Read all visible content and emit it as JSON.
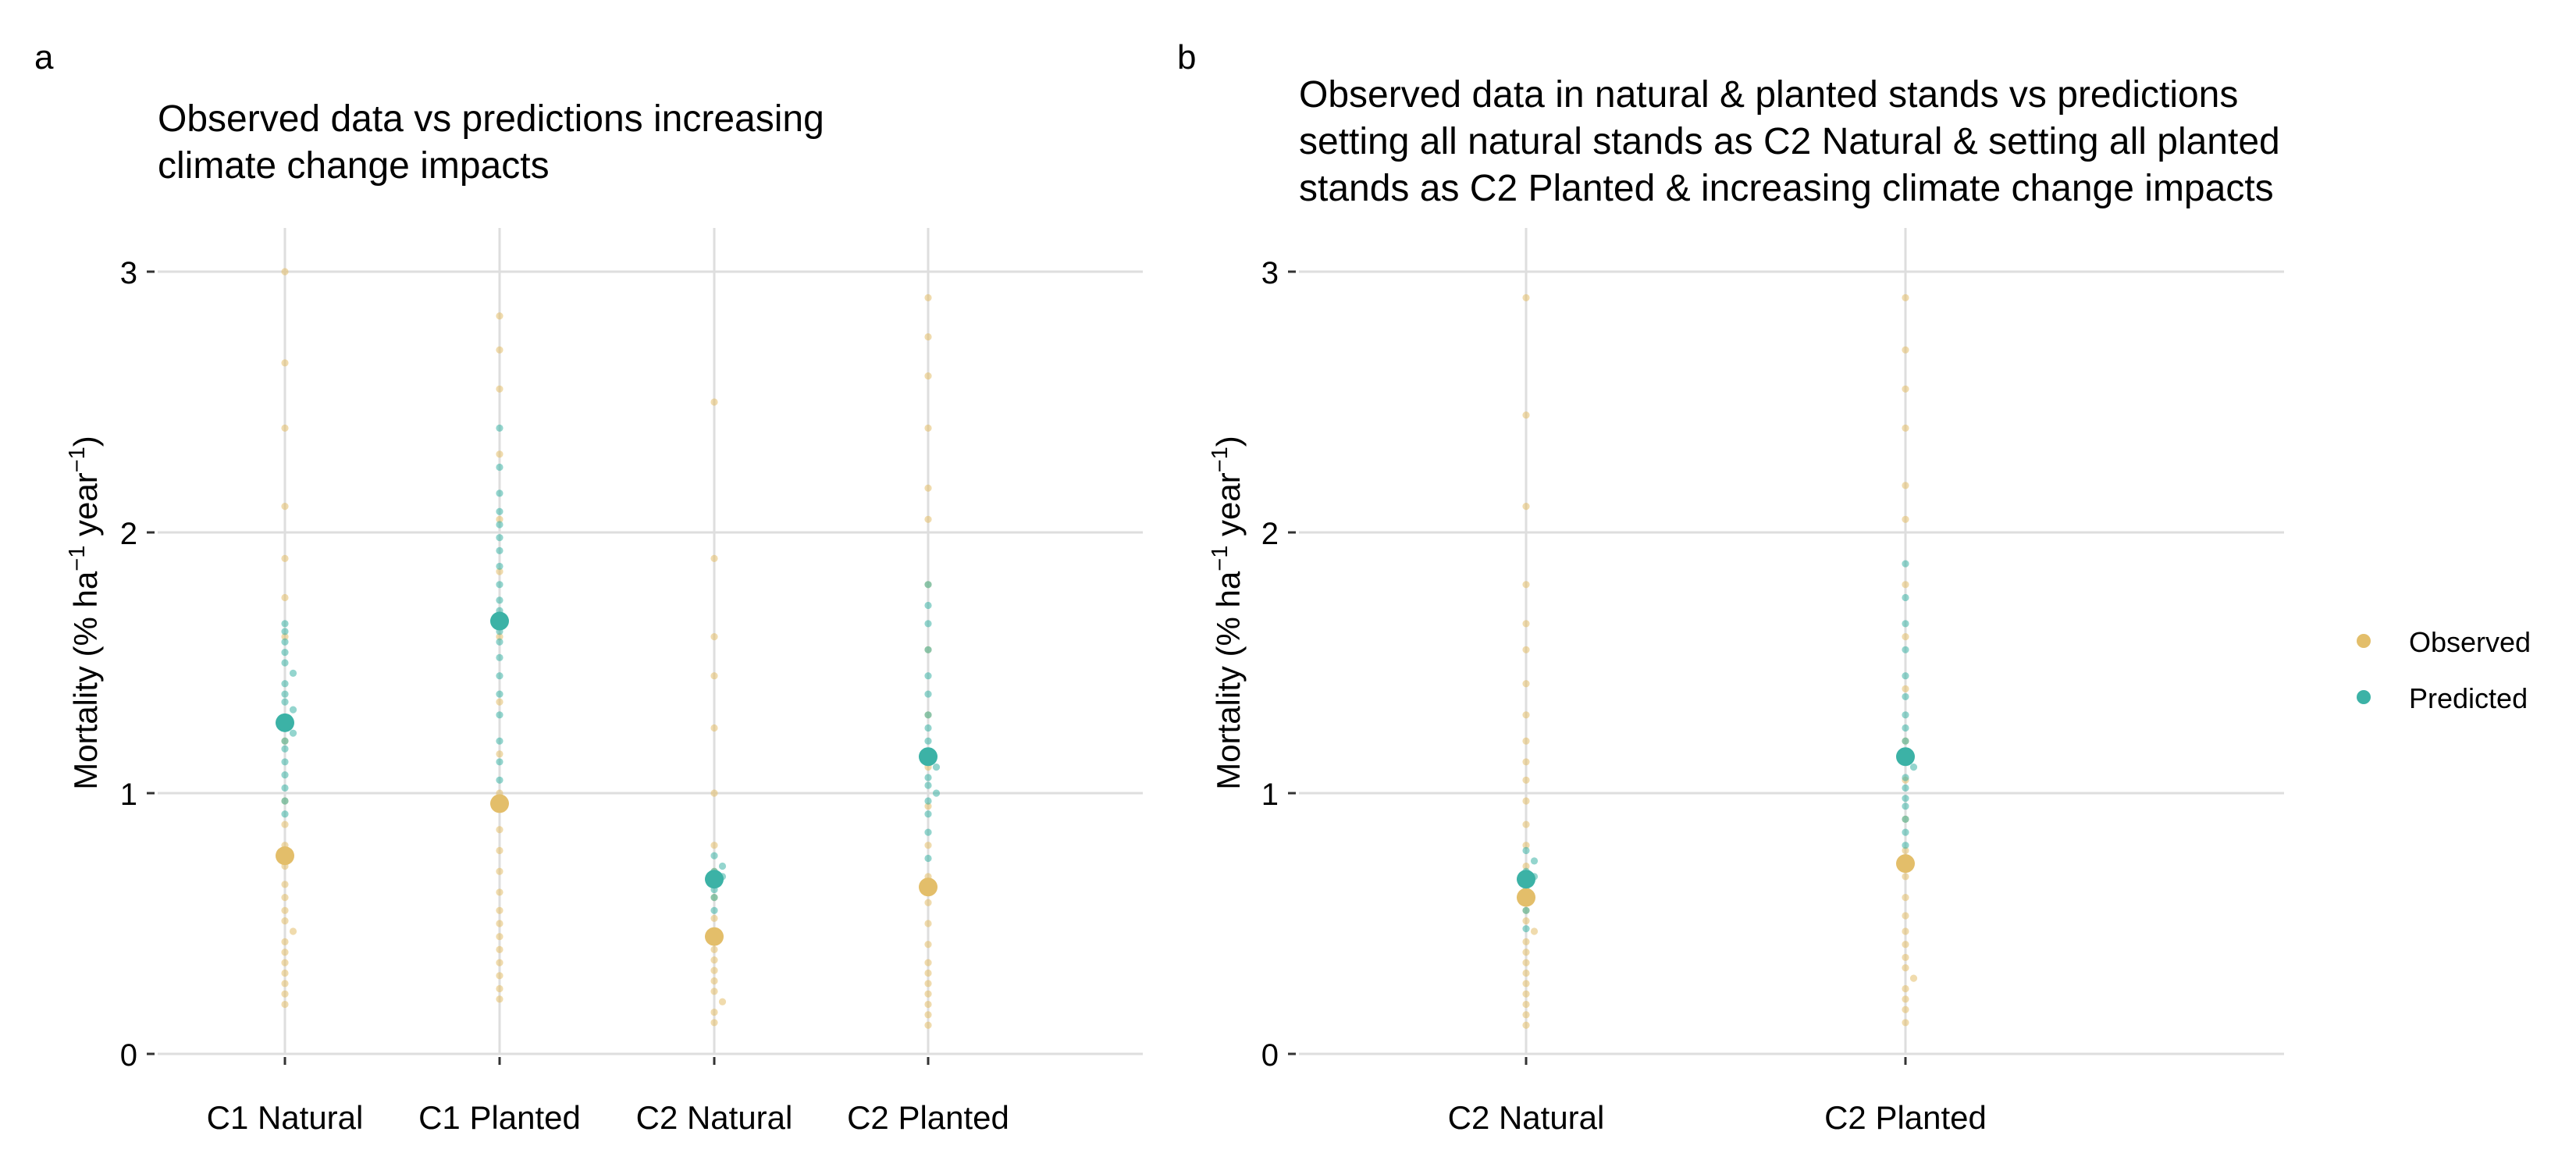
{
  "panels": [
    {
      "panel_label": "a",
      "title_lines": [
        "Observed data vs predictions increasing",
        "climate change impacts"
      ],
      "ylabel_parts": [
        "Mortality (% ha",
        "−1",
        " year",
        "−1",
        ")"
      ]
    },
    {
      "panel_label": "b",
      "title_lines": [
        "Observed data in natural & planted stands vs predictions",
        "setting all natural stands as C2 Natural & setting all planted",
        "stands as C2 Planted & increasing climate change impacts"
      ],
      "ylabel_parts": [
        "Mortality (% ha",
        "−1",
        " year",
        "−1",
        ")"
      ]
    }
  ],
  "legend": {
    "items": [
      {
        "label": "Observed",
        "color": "#E3BE6A"
      },
      {
        "label": "Predicted",
        "color": "#3CB2A6"
      }
    ]
  },
  "chart_data": [
    {
      "type": "scatter",
      "subtype": "dotplot-with-means",
      "title": "Observed data vs predictions increasing climate change impacts",
      "ylabel": "Mortality (% ha−1 year−1)",
      "ylim": [
        0,
        3.2
      ],
      "yticks": [
        0,
        1,
        2,
        3
      ],
      "categories": [
        "C1 Natural",
        "C1 Planted",
        "C2 Natural",
        "C2 Planted"
      ],
      "grid": true,
      "legend_position": "right",
      "series": [
        {
          "name": "Observed",
          "color": "#E3BE6A",
          "means": [
            0.76,
            0.96,
            0.45,
            0.64
          ],
          "points": [
            [
              0.19,
              0.23,
              0.27,
              0.31,
              0.35,
              0.39,
              0.43,
              0.47,
              0.51,
              0.55,
              0.6,
              0.65,
              0.72,
              0.8,
              0.88,
              0.97,
              1.2,
              1.6,
              1.75,
              1.9,
              2.1,
              2.4,
              2.65,
              3.0
            ],
            [
              0.21,
              0.25,
              0.3,
              0.35,
              0.4,
              0.45,
              0.5,
              0.55,
              0.62,
              0.7,
              0.78,
              0.86,
              1.0,
              1.15,
              1.35,
              1.6,
              1.85,
              2.05,
              2.3,
              2.55,
              2.7,
              2.83
            ],
            [
              0.12,
              0.16,
              0.2,
              0.24,
              0.28,
              0.32,
              0.36,
              0.4,
              0.45,
              0.52,
              0.6,
              0.7,
              0.8,
              1.0,
              1.25,
              1.45,
              1.6,
              1.9,
              2.5
            ],
            [
              0.11,
              0.15,
              0.19,
              0.23,
              0.27,
              0.31,
              0.35,
              0.42,
              0.5,
              0.58,
              0.68,
              0.8,
              0.95,
              1.1,
              1.3,
              1.55,
              1.8,
              2.05,
              2.17,
              2.4,
              2.6,
              2.75,
              2.9
            ]
          ]
        },
        {
          "name": "Predicted",
          "color": "#3CB2A6",
          "means": [
            1.27,
            1.66,
            0.67,
            1.14
          ],
          "points": [
            [
              0.92,
              0.97,
              1.02,
              1.07,
              1.12,
              1.17,
              1.2,
              1.23,
              1.26,
              1.29,
              1.32,
              1.35,
              1.38,
              1.42,
              1.46,
              1.5,
              1.54,
              1.58,
              1.62,
              1.65
            ],
            [
              0.95,
              1.05,
              1.12,
              1.2,
              1.3,
              1.38,
              1.45,
              1.52,
              1.58,
              1.62,
              1.66,
              1.7,
              1.74,
              1.8,
              1.87,
              1.93,
              1.98,
              2.03,
              2.08,
              2.15,
              2.25,
              2.4
            ],
            [
              0.55,
              0.6,
              0.63,
              0.66,
              0.68,
              0.7,
              0.72,
              0.76
            ],
            [
              0.75,
              0.85,
              0.92,
              0.97,
              1.0,
              1.03,
              1.06,
              1.1,
              1.13,
              1.16,
              1.2,
              1.25,
              1.3,
              1.38,
              1.45,
              1.55,
              1.65,
              1.72,
              1.8
            ]
          ]
        }
      ]
    },
    {
      "type": "scatter",
      "subtype": "dotplot-with-means",
      "title": "Observed data in natural & planted stands vs predictions setting all natural stands as C2 Natural & setting all planted stands as C2 Planted & increasing climate change impacts",
      "ylabel": "Mortality (% ha−1 year−1)",
      "ylim": [
        0,
        3.2
      ],
      "yticks": [
        0,
        1,
        2,
        3
      ],
      "categories": [
        "C2 Natural",
        "C2 Planted"
      ],
      "grid": true,
      "legend_position": "right",
      "series": [
        {
          "name": "Observed",
          "color": "#E3BE6A",
          "means": [
            0.6,
            0.73
          ],
          "points": [
            [
              0.11,
              0.15,
              0.19,
              0.23,
              0.27,
              0.31,
              0.35,
              0.39,
              0.43,
              0.47,
              0.51,
              0.55,
              0.6,
              0.65,
              0.72,
              0.8,
              0.88,
              0.97,
              1.05,
              1.12,
              1.2,
              1.3,
              1.42,
              1.55,
              1.65,
              1.8,
              2.1,
              2.45,
              2.9
            ],
            [
              0.12,
              0.17,
              0.21,
              0.25,
              0.29,
              0.33,
              0.37,
              0.42,
              0.47,
              0.53,
              0.6,
              0.68,
              0.78,
              0.9,
              1.05,
              1.2,
              1.4,
              1.6,
              1.8,
              2.05,
              2.18,
              2.4,
              2.55,
              2.7,
              2.9
            ]
          ]
        },
        {
          "name": "Predicted",
          "color": "#3CB2A6",
          "means": [
            0.67,
            1.14
          ],
          "points": [
            [
              0.48,
              0.55,
              0.6,
              0.63,
              0.66,
              0.68,
              0.7,
              0.74,
              0.78
            ],
            [
              0.8,
              0.85,
              0.9,
              0.95,
              0.98,
              1.02,
              1.06,
              1.1,
              1.13,
              1.16,
              1.2,
              1.25,
              1.3,
              1.37,
              1.45,
              1.55,
              1.65,
              1.75,
              1.88
            ]
          ]
        }
      ]
    }
  ]
}
